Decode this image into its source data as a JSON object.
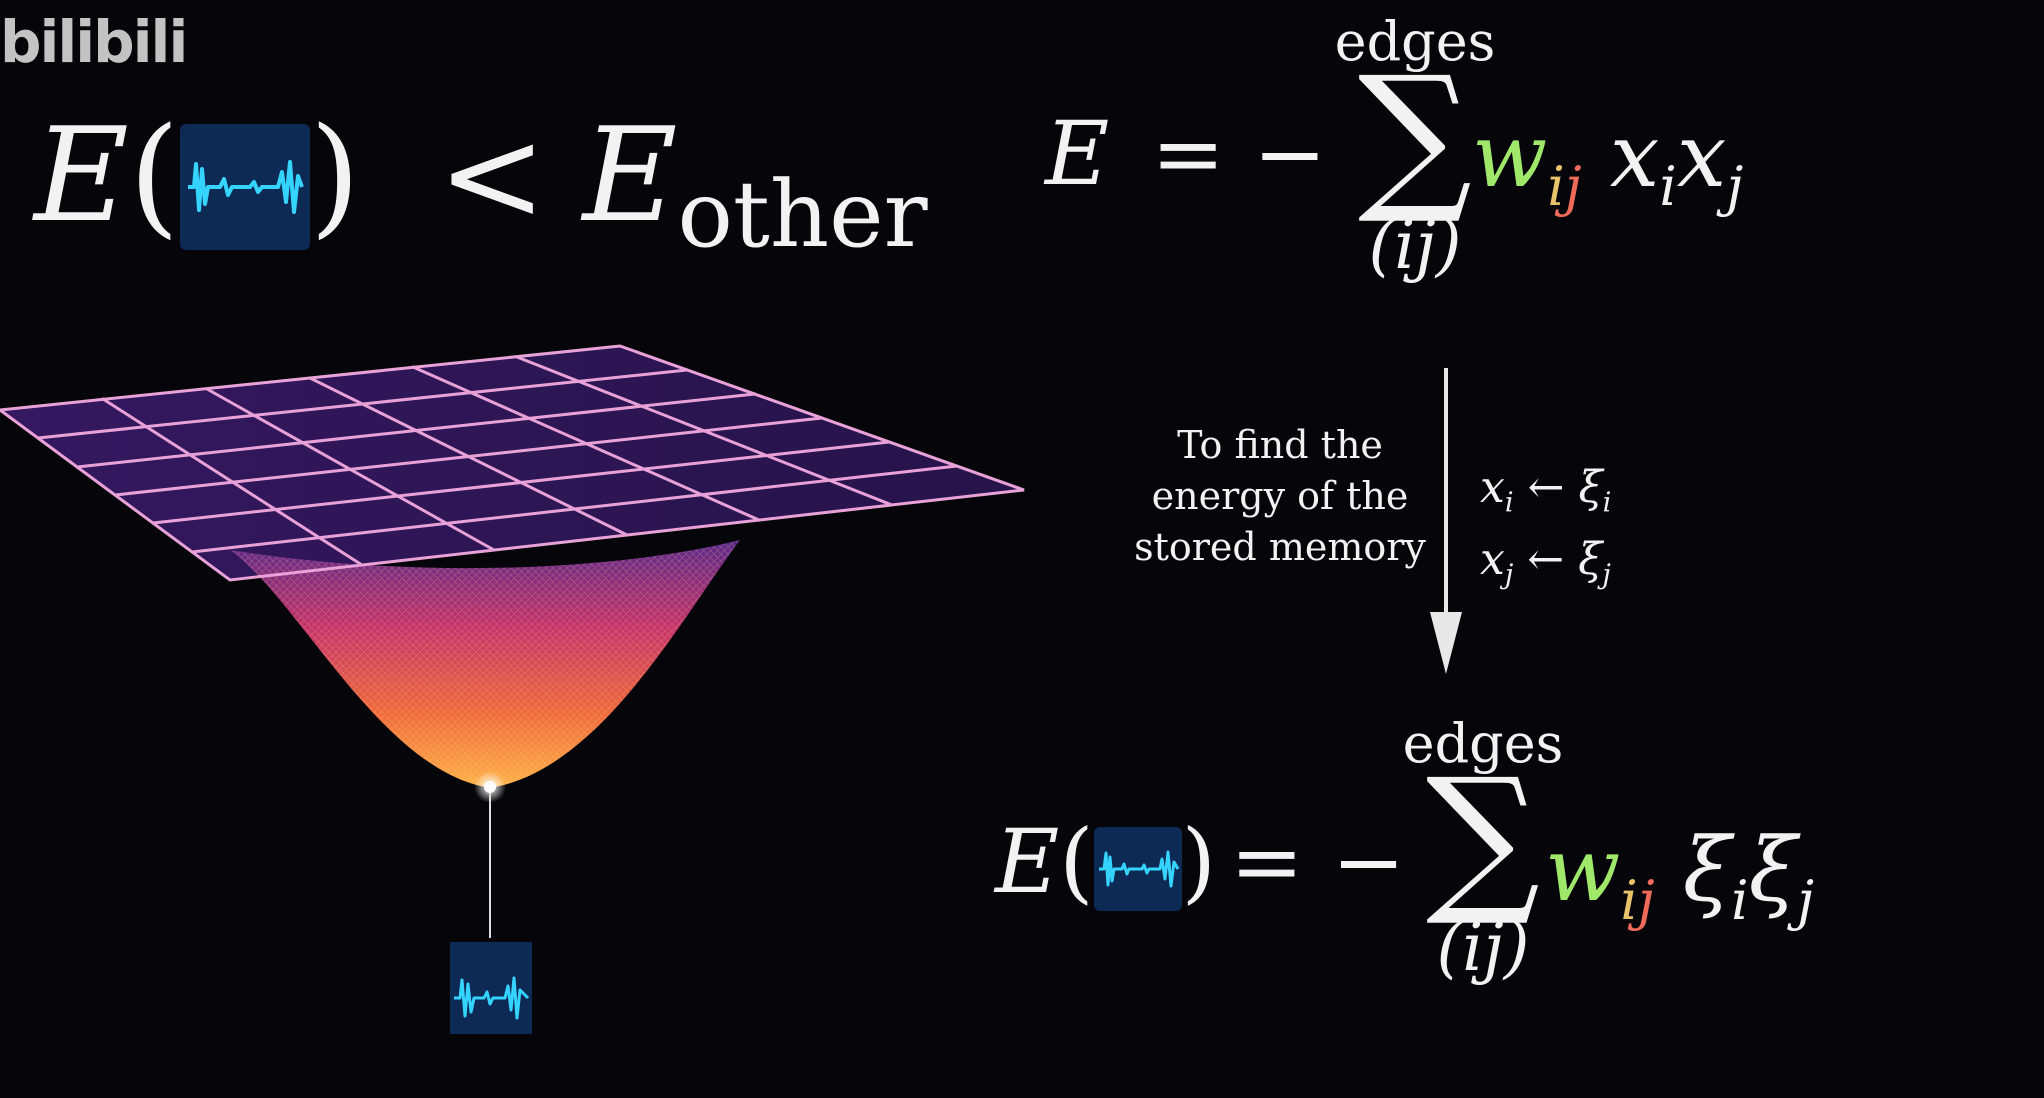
{
  "watermark": "bilibili",
  "inequality": {
    "lhs": "E",
    "lparen": "(",
    "rparen": ")",
    "lt": "<",
    "rhs_E": "E",
    "rhs_sub": "other"
  },
  "formula_top": {
    "lhs": "E",
    "eq": "= −",
    "sum_top": "edges",
    "sum_sym": "∑",
    "sum_bottom": "(ij)",
    "w": "w",
    "w_i": "i",
    "w_j": "j",
    "x1": "x",
    "x1_sub": "i",
    "x2": "x",
    "x2_sub": "j"
  },
  "note": {
    "line1": "To find the",
    "line2": "energy of the",
    "line3": "stored memory"
  },
  "assignments": {
    "a1_lhs": "x",
    "a1_sub": "i",
    "a1_arrow": "←",
    "a1_rhs": "ξ",
    "a1_rhs_sub": "i",
    "a2_lhs": "x",
    "a2_sub": "j",
    "a2_arrow": "←",
    "a2_rhs": "ξ",
    "a2_rhs_sub": "j"
  },
  "formula_bottom": {
    "lhs": "E",
    "lparen": "(",
    "rparen": ")",
    "eq": "= −",
    "sum_top": "edges",
    "sum_sym": "∑",
    "sum_bottom": "(ij)",
    "w": "w",
    "w_i": "i",
    "w_j": "j",
    "xi1": "ξ",
    "xi1_sub": "i",
    "xi2": "ξ",
    "xi2_sub": "j"
  },
  "colors": {
    "background": "#05050a",
    "grid": "#e9a2d8",
    "surface_low": "#ffb347",
    "surface_high": "#5a2a8a",
    "w_color": "#9fe86a",
    "i_color": "#e8c36a",
    "j_color": "#ee6b5a",
    "audio_wave": "#34d4ff",
    "audio_bg": "#0d2a55"
  },
  "icons": [
    "audio-waveform-icon"
  ]
}
